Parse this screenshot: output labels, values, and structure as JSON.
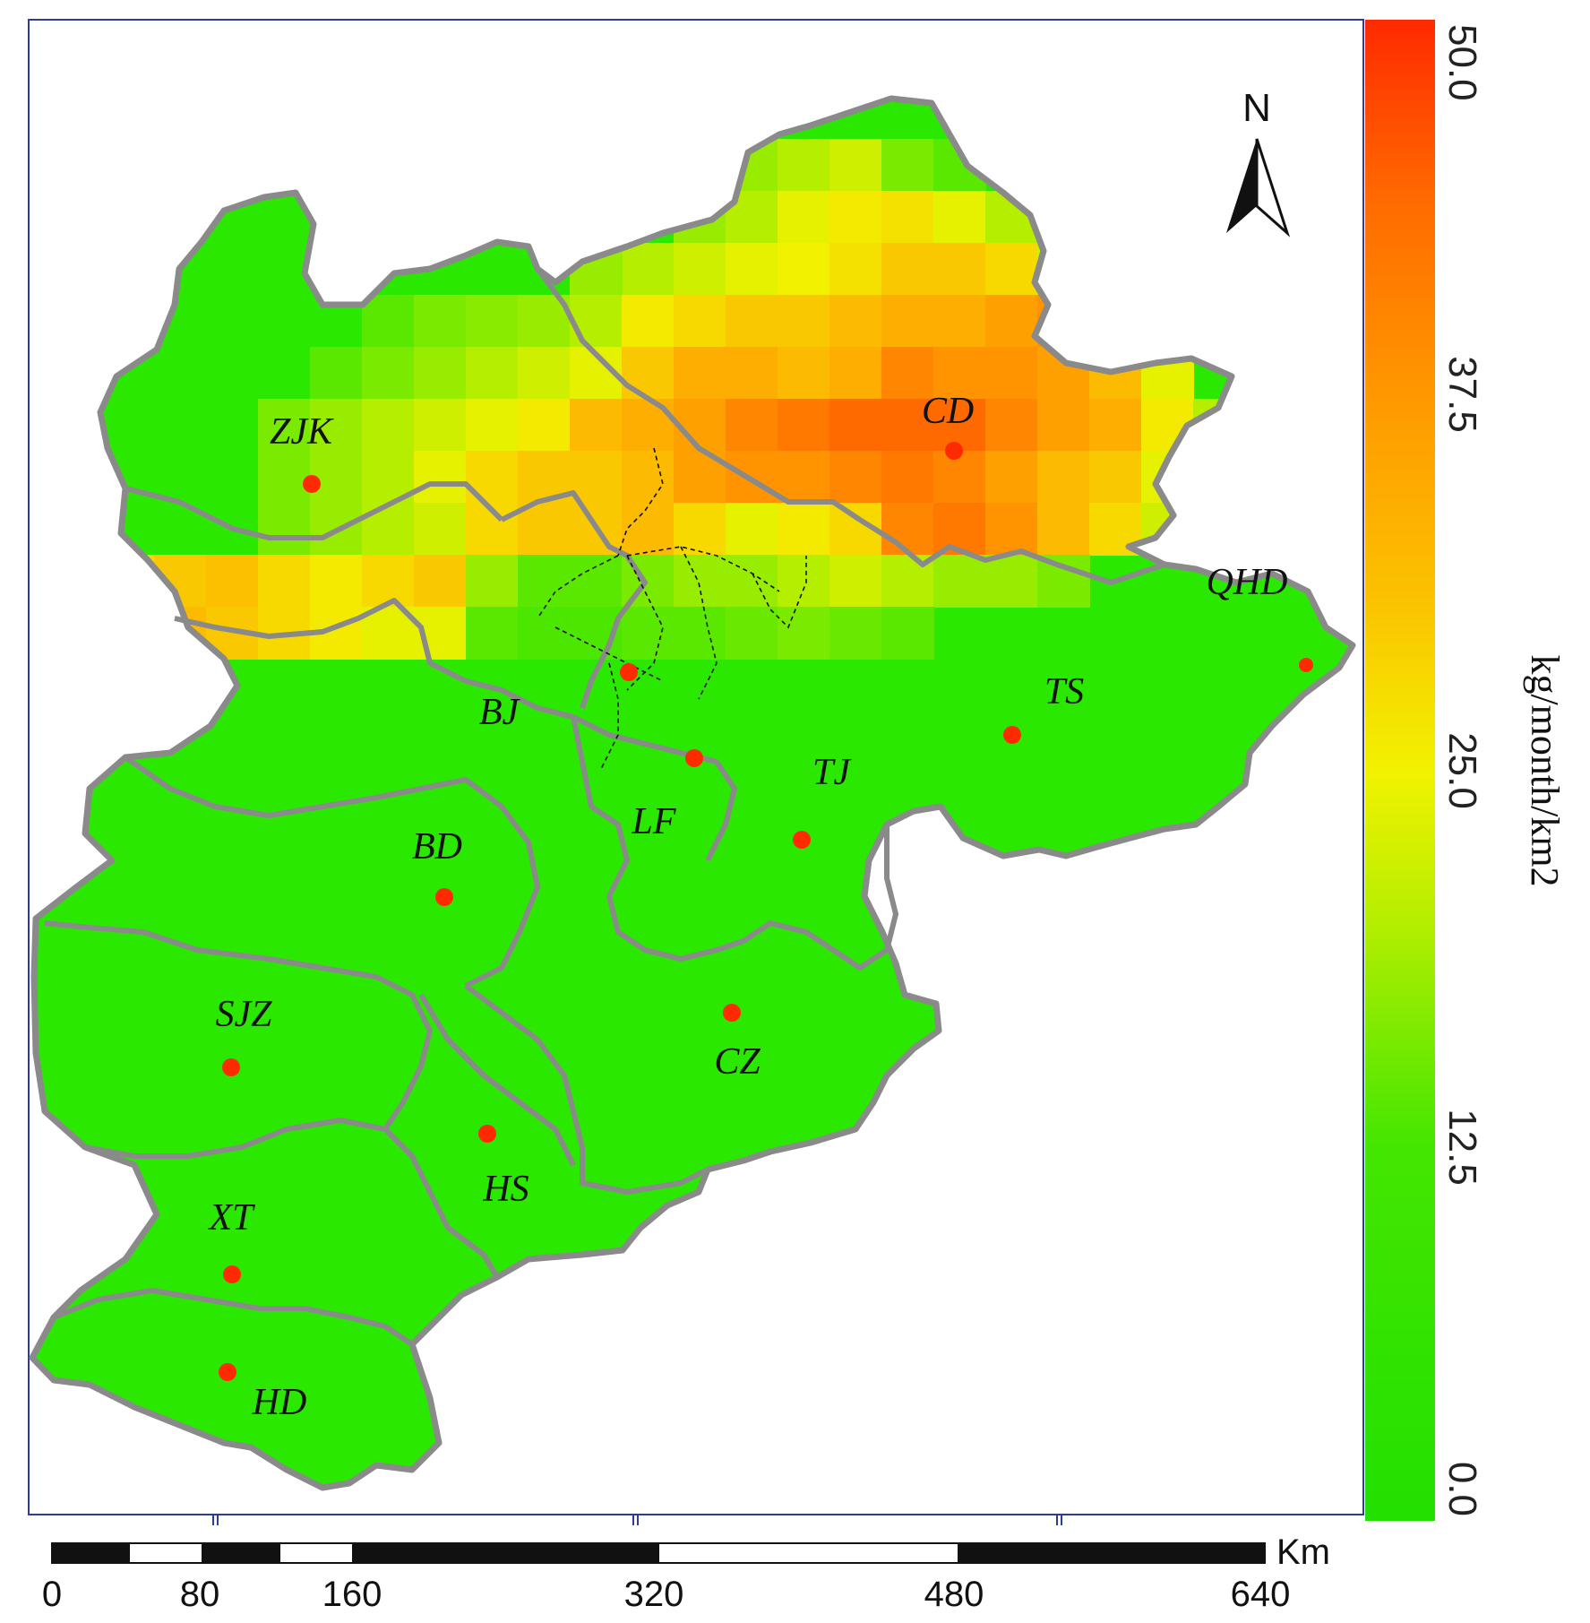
{
  "legend": {
    "title": "kg/month/km2",
    "ticks": [
      "50.0",
      "37.5",
      "25.0",
      "12.5",
      "0.0"
    ],
    "stops": [
      {
        "value": 0.0,
        "color": "#22e000"
      },
      {
        "value": 12.5,
        "color": "#44e600"
      },
      {
        "value": 20.0,
        "color": "#b6ee00"
      },
      {
        "value": 25.0,
        "color": "#f2f200"
      },
      {
        "value": 31.0,
        "color": "#fcc000"
      },
      {
        "value": 37.5,
        "color": "#ff9800"
      },
      {
        "value": 44.0,
        "color": "#ff6a00"
      },
      {
        "value": 50.0,
        "color": "#ff2a00"
      }
    ]
  },
  "north_arrow": {
    "label": "N"
  },
  "scale_bar": {
    "unit": "Km",
    "ticks": [
      "0",
      "80",
      "160",
      "320",
      "480",
      "640"
    ]
  },
  "cities": [
    {
      "code": "ZJK"
    },
    {
      "code": "CD"
    },
    {
      "code": "QHD"
    },
    {
      "code": "BJ"
    },
    {
      "code": "TS"
    },
    {
      "code": "LF"
    },
    {
      "code": "TJ"
    },
    {
      "code": "BD"
    },
    {
      "code": "SJZ"
    },
    {
      "code": "CZ"
    },
    {
      "code": "HS"
    },
    {
      "code": "XT"
    },
    {
      "code": "HD"
    }
  ],
  "colors": {
    "base_green": "#2ae800",
    "boundary": "#8a8a8a",
    "frame": "#2e3a9e",
    "city_dot": "#ff2a00"
  }
}
